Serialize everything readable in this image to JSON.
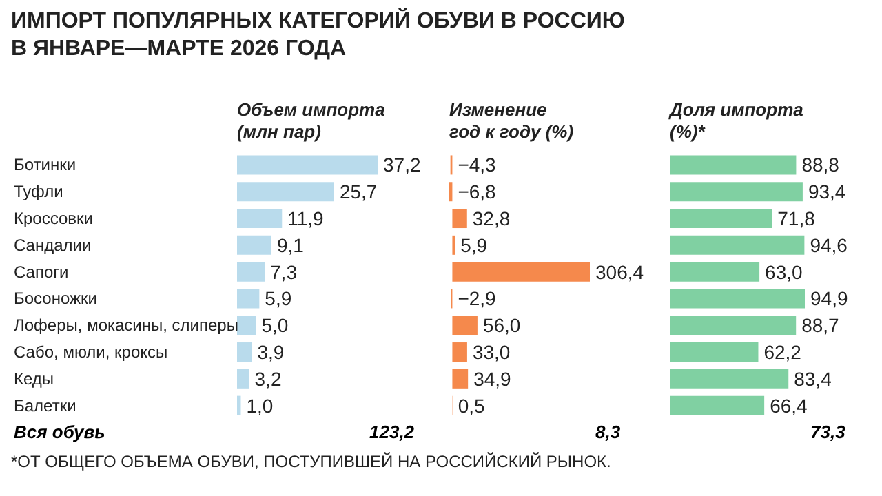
{
  "chart_data": [
    {
      "type": "bar",
      "orientation": "horizontal",
      "title": "ИМПОРТ ПОПУЛЯРНЫХ КАТЕГОРИЙ ОБУВИ В РОССИЮ\nВ ЯНВАРЕ—МАРТЕ 2026 ГОДА",
      "subtitle": "Объем импорта\n(млн пар)",
      "categories": [
        "Ботинки",
        "Туфли",
        "Кроссовки",
        "Сандалии",
        "Сапоги",
        "Босоножки",
        "Лоферы, мокасины, слиперы",
        "Сабо, мюли, кроксы",
        "Кеды",
        "Балетки"
      ],
      "values": [
        37.2,
        25.7,
        11.9,
        9.1,
        7.3,
        5.9,
        5.0,
        3.9,
        3.2,
        1.0
      ],
      "value_labels": [
        "37,2",
        "25,7",
        "11,9",
        "9,1",
        "7,3",
        "5,9",
        "5,0",
        "3,9",
        "3,2",
        "1,0"
      ],
      "color": "#b9dbec",
      "tick_labels": "y",
      "annotations": [
        "Вся обувь",
        "123,2",
        "*ОТ ОБЩЕГО ОБЪЕМА ОБУВИ, ПОСТУПИВШЕЙ НА РОССИЙСКИЙ РЫНОК."
      ]
    },
    {
      "type": "bar",
      "orientation": "horizontal",
      "subtitle": "Изменение\nгод к году (%)",
      "categories": [
        null,
        null,
        null,
        null,
        null,
        null,
        null,
        null,
        null,
        null
      ],
      "values": [
        -4.3,
        -6.8,
        32.8,
        5.9,
        306.4,
        -2.9,
        56.0,
        33.0,
        34.9,
        0.5
      ],
      "value_labels": [
        "−4,3",
        "−6,8",
        "32,8",
        "5,9",
        "306,4",
        "−2,9",
        "56,0",
        "33,0",
        "34,9",
        "0,5"
      ],
      "color": "#f5894c",
      "tick_labels": false,
      "annotations": [
        "8,3"
      ]
    },
    {
      "type": "bar",
      "orientation": "horizontal",
      "subtitle": "Доля импорта\n(%)*",
      "categories": [
        null,
        null,
        null,
        null,
        null,
        null,
        null,
        null,
        null,
        null
      ],
      "values": [
        88.8,
        93.4,
        71.8,
        94.6,
        63.0,
        94.9,
        88.7,
        62.2,
        83.4,
        66.4
      ],
      "value_labels": [
        "88,8",
        "93,4",
        "71,8",
        "94,6",
        "63,0",
        "94,9",
        "88,7",
        "62,2",
        "83,4",
        "66,4"
      ],
      "color": "#80d0a2",
      "tick_labels": false,
      "annotations": [
        "73,3"
      ]
    }
  ]
}
